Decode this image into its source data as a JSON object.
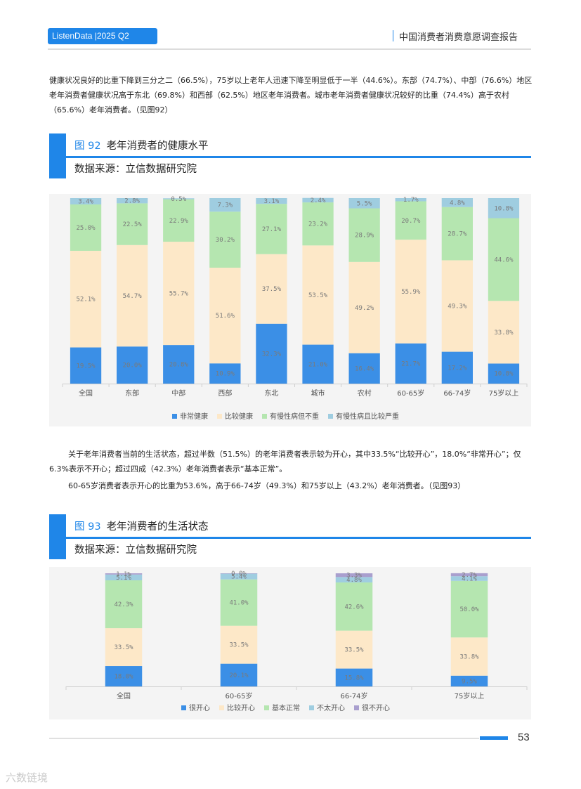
{
  "header": {
    "brand": "ListenData |2025 Q2",
    "report_title": "中国消费者消费意愿调查报告"
  },
  "intro_paragraph": "健康状况良好的比重下降到三分之二（66.5%），75岁以上老年人迅速下降至明显低于一半（44.6%）。东部（74.7%）、中部（76.6%）地区老年消费者健康状况高于东北（69.8%）和西部（62.5%）地区老年消费者。城市老年消费者健康状况较好的比重（74.4%）高于农村（65.6%）老年消费者。（见图92）",
  "figure92": {
    "number": "图 92",
    "title": "老年消费者的健康水平",
    "source": "数据来源：立信数据研究院"
  },
  "section_paragraph_1": "关于老年消费者当前的生活状态，超过半数（51.5%）的老年消费者表示较为开心，其中33.5%“比较开心”，18.0%“非常开心”；仅6.3%表示不开心；超过四成（42.3%）老年消费者表示“基本正常”。",
  "section_paragraph_2": "60-65岁消费者表示开心的比重为53.6%，高于66-74岁（49.3%）和75岁以上（43.2%）老年消费者。（见图93）",
  "figure93": {
    "number": "图 93",
    "title": "老年消费者的生活状态",
    "source": "数据来源：立信数据研究院"
  },
  "chart_data": [
    {
      "type": "bar",
      "stacked": true,
      "title": "老年消费者的健康水平",
      "categories": [
        "全国",
        "东部",
        "中部",
        "西部",
        "东北",
        "城市",
        "农村",
        "60-65岁",
        "66-74岁",
        "75岁以上"
      ],
      "series": [
        {
          "name": "非常健康",
          "color": "#3b8fe6",
          "values": [
            19.5,
            20.0,
            20.8,
            10.9,
            32.3,
            21.0,
            16.4,
            21.7,
            17.2,
            10.8
          ]
        },
        {
          "name": "比较健康",
          "color": "#fde8c8",
          "values": [
            52.1,
            54.7,
            55.7,
            51.6,
            37.5,
            53.5,
            49.2,
            55.9,
            49.3,
            33.8
          ]
        },
        {
          "name": "有慢性病但不重",
          "color": "#b5e6b0",
          "values": [
            25.0,
            22.5,
            22.9,
            30.2,
            27.1,
            23.2,
            28.9,
            20.7,
            28.7,
            44.6
          ]
        },
        {
          "name": "有慢性病且比较严重",
          "color": "#9fcde0",
          "values": [
            3.4,
            2.8,
            0.5,
            7.3,
            3.1,
            2.4,
            5.5,
            1.7,
            4.8,
            10.8
          ]
        }
      ],
      "ylim": [
        0,
        100
      ],
      "legend": "bottom"
    },
    {
      "type": "bar",
      "stacked": true,
      "title": "老年消费者的生活状态",
      "categories": [
        "全国",
        "60-65岁",
        "66-74岁",
        "75岁以上"
      ],
      "series": [
        {
          "name": "很开心",
          "color": "#3b8fe6",
          "values": [
            18.0,
            20.1,
            15.8,
            9.5
          ]
        },
        {
          "name": "比较开心",
          "color": "#fde8c8",
          "values": [
            33.5,
            33.5,
            33.5,
            33.8
          ]
        },
        {
          "name": "基本正常",
          "color": "#b5e6b0",
          "values": [
            42.3,
            41.0,
            42.6,
            50.0
          ]
        },
        {
          "name": "不太开心",
          "color": "#9fcde0",
          "values": [
            5.1,
            5.4,
            4.8,
            4.1
          ]
        },
        {
          "name": "很不开心",
          "color": "#a99fce",
          "values": [
            1.1,
            0.0,
            3.3,
            2.7
          ]
        }
      ],
      "ylim": [
        0,
        100
      ],
      "legend": "bottom"
    }
  ],
  "footer": {
    "page_number": "53",
    "watermark": "六数链境"
  }
}
